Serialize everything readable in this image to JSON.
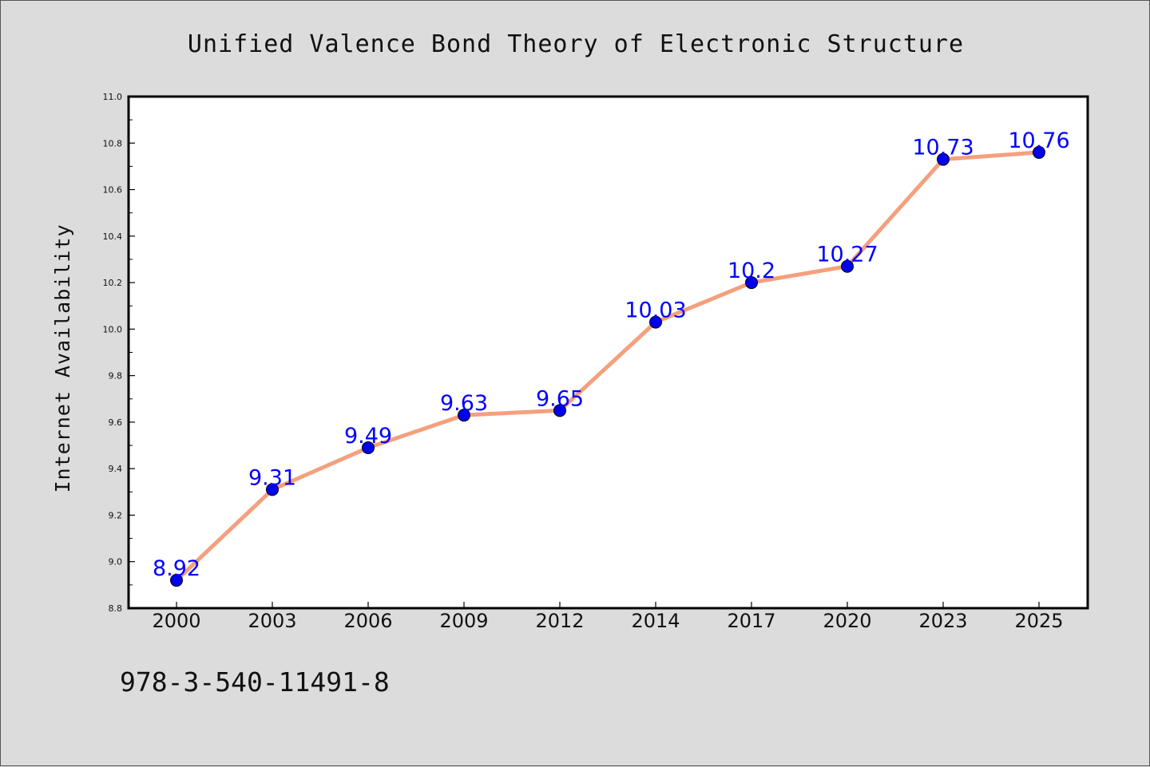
{
  "chart_data": {
    "type": "line",
    "title": "Unified Valence Bond Theory of Electronic Structure",
    "xlabel": "",
    "ylabel": "Internet Availability",
    "categories": [
      "2000",
      "2003",
      "2006",
      "2009",
      "2012",
      "2014",
      "2017",
      "2020",
      "2023",
      "2025"
    ],
    "series": [
      {
        "values": [
          8.92,
          9.31,
          9.49,
          9.63,
          9.65,
          10.03,
          10.2,
          10.27,
          10.73,
          10.76
        ],
        "data_labels": [
          "8.92",
          "9.31",
          "9.49",
          "9.63",
          "9.65",
          "10.03",
          "10.2",
          "10.27",
          "10.73",
          "10.76"
        ],
        "line_color": "#f4a07e",
        "marker_color": "#0000ee",
        "label_color": "#0000ff"
      }
    ],
    "ylim": [
      8.8,
      11.0
    ],
    "yticks": [
      "8.8",
      "9.0",
      "9.2",
      "9.4",
      "9.6",
      "9.8",
      "10.0",
      "10.2",
      "10.4",
      "10.6",
      "10.8",
      "11.0"
    ],
    "grid": false,
    "legend": "none"
  },
  "footer_text": "978-3-540-11491-8",
  "colors": {
    "figure_background": "#dcdcdc",
    "plot_background": "#ffffff",
    "axis_color": "#000000"
  }
}
